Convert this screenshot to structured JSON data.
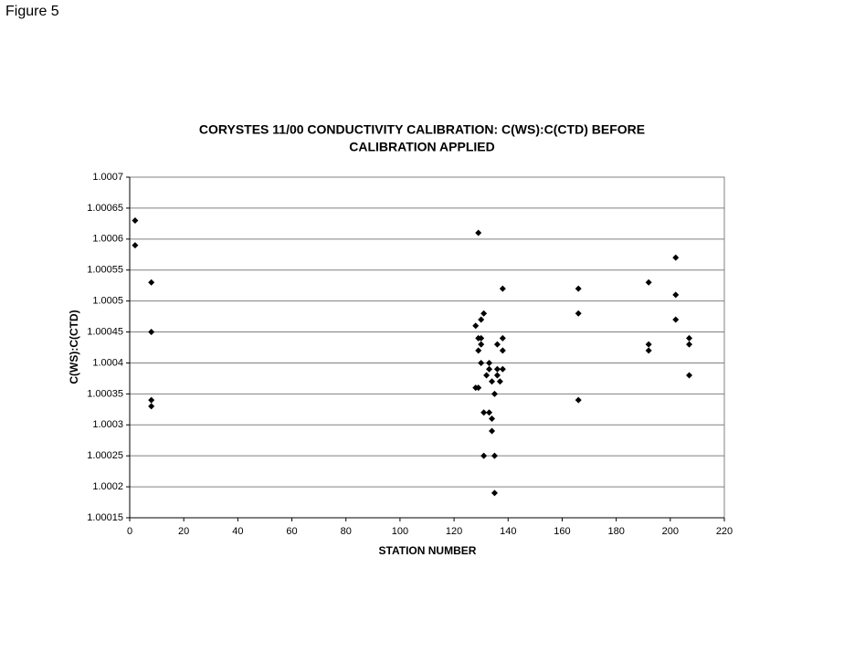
{
  "figure_label": "Figure 5",
  "chart_data": {
    "type": "scatter",
    "title": [
      "CORYSTES 11/00 CONDUCTIVITY CALIBRATION: C(WS):C(CTD) BEFORE",
      "CALIBRATION APPLIED"
    ],
    "x_label": "STATION NUMBER",
    "y_label": "C(WS):C(CTD)",
    "xlim": [
      0,
      220
    ],
    "xticks": [
      0,
      20,
      40,
      60,
      80,
      100,
      120,
      140,
      160,
      180,
      200,
      220
    ],
    "ylim": [
      1.00015,
      1.0007
    ],
    "yticks": [
      1.00015,
      1.0002,
      1.00025,
      1.0003,
      1.00035,
      1.0004,
      1.00045,
      1.0005,
      1.00055,
      1.0006,
      1.00065,
      1.0007
    ],
    "grid": true,
    "color": "#000000",
    "x": [
      2,
      2,
      8,
      8,
      8,
      8,
      129,
      138,
      131,
      128,
      130,
      129,
      130,
      130,
      129,
      136,
      138,
      138,
      130,
      133,
      132,
      133,
      136,
      138,
      136,
      134,
      137,
      128,
      129,
      135,
      131,
      133,
      134,
      134,
      131,
      135,
      135,
      166,
      166,
      166,
      192,
      192,
      192,
      202,
      202,
      202,
      207,
      207,
      207
    ],
    "y": [
      1.00063,
      1.00059,
      1.00053,
      1.00045,
      1.00034,
      1.00033,
      1.00061,
      1.00052,
      1.00048,
      1.00046,
      1.00047,
      1.00044,
      1.00044,
      1.00043,
      1.00042,
      1.00043,
      1.00044,
      1.00042,
      1.0004,
      1.0004,
      1.00038,
      1.00039,
      1.00039,
      1.00039,
      1.00038,
      1.00037,
      1.00037,
      1.00036,
      1.00036,
      1.00035,
      1.00032,
      1.00032,
      1.00031,
      1.00029,
      1.00025,
      1.00025,
      1.00019,
      1.00052,
      1.00048,
      1.00034,
      1.00053,
      1.00043,
      1.00042,
      1.00057,
      1.00051,
      1.00047,
      1.00044,
      1.00043,
      1.00038
    ]
  }
}
